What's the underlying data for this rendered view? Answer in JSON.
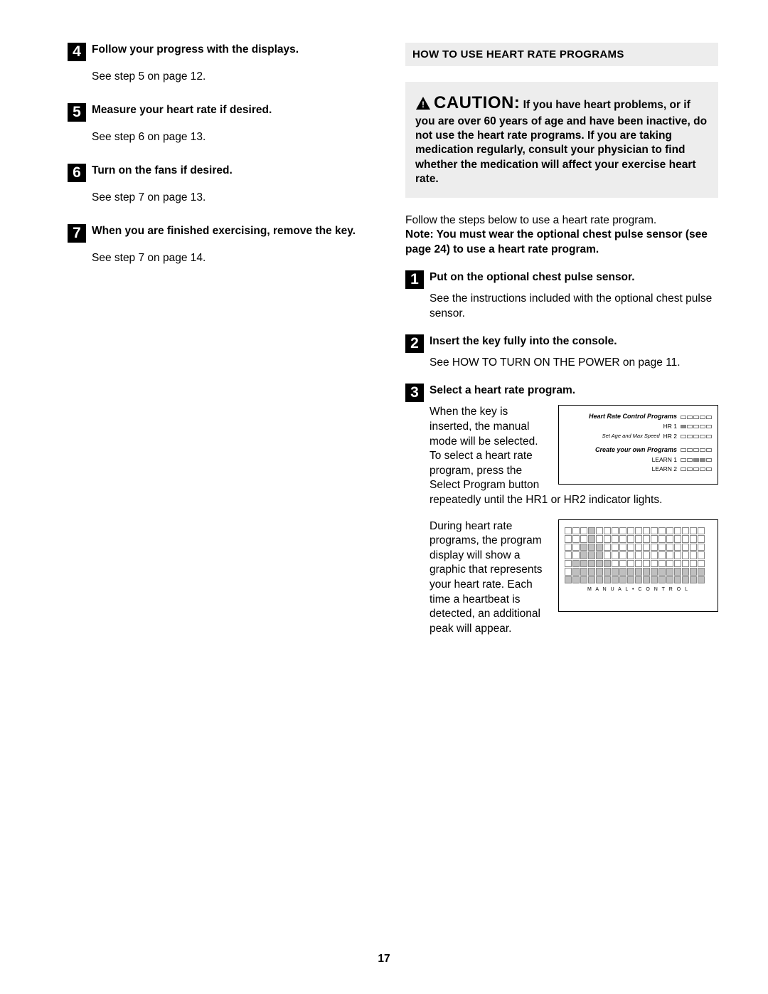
{
  "left": {
    "steps": [
      {
        "num": "4",
        "title": "Follow your progress with the displays.",
        "text": "See step 5 on page 12."
      },
      {
        "num": "5",
        "title": "Measure your heart rate if desired.",
        "text": "See step 6 on page 13."
      },
      {
        "num": "6",
        "title": "Turn on the fans if desired.",
        "text": "See step 7 on page 13."
      },
      {
        "num": "7",
        "title": "When you are finished exercising, remove the key.",
        "text": "See step 7 on page 14."
      }
    ]
  },
  "right": {
    "header": "HOW TO USE HEART RATE PROGRAMS",
    "caution": {
      "label": "CAUTION:",
      "text": "If you have heart problems, or if you are over 60 years of age and have been inactive, do not use the heart rate programs. If you are taking medication regularly, consult your physician to find whether the medication will affect your exercise heart rate."
    },
    "intro_plain": "Follow the steps below to use a heart rate program.",
    "intro_bold": "Note: You must wear the optional chest pulse sensor (see page 24) to use a heart rate program.",
    "steps": [
      {
        "num": "1",
        "title": "Put on the optional chest pulse sensor.",
        "text": "See the instructions included with the optional chest pulse sensor."
      },
      {
        "num": "2",
        "title": "Insert the key fully into the console.",
        "text": "See HOW TO TURN ON THE POWER on page 11."
      },
      {
        "num": "3",
        "title": "Select a heart rate program.",
        "para1": "When the key is inserted, the manual mode will be selected. To select a heart rate program, press the Select Program button repeatedly until the HR1 or HR2 indicator lights.",
        "para2": "During heart rate programs, the program display will show a graphic that represents your heart rate. Each time a heartbeat is detected, an additional peak will appear."
      }
    ],
    "panel1": {
      "title": "Heart Rate Control Programs",
      "sub": "Set Age and Max Speed",
      "hr1": "HR 1",
      "hr2": "HR 2",
      "create": "Create your own Programs",
      "learn1": "LEARN 1",
      "learn2": "LEARN 2"
    },
    "panel2": {
      "label": "M A N U A L • C O N T R O L",
      "cols": 18,
      "pattern": [
        [
          0,
          0,
          0,
          1,
          0,
          0,
          0,
          0,
          0,
          0,
          0,
          0,
          0,
          0,
          0,
          0,
          0,
          0
        ],
        [
          0,
          0,
          0,
          1,
          0,
          0,
          0,
          0,
          0,
          0,
          0,
          0,
          0,
          0,
          0,
          0,
          0,
          0
        ],
        [
          0,
          0,
          1,
          1,
          1,
          0,
          0,
          0,
          0,
          0,
          0,
          0,
          0,
          0,
          0,
          0,
          0,
          0
        ],
        [
          0,
          0,
          1,
          1,
          1,
          0,
          0,
          0,
          0,
          0,
          0,
          0,
          0,
          0,
          0,
          0,
          0,
          0
        ],
        [
          0,
          1,
          1,
          1,
          1,
          1,
          0,
          0,
          0,
          0,
          0,
          0,
          0,
          0,
          0,
          0,
          0,
          0
        ],
        [
          0,
          1,
          1,
          1,
          1,
          1,
          1,
          1,
          1,
          1,
          1,
          1,
          1,
          1,
          1,
          1,
          1,
          1
        ],
        [
          1,
          1,
          1,
          1,
          1,
          1,
          1,
          1,
          1,
          1,
          1,
          1,
          1,
          1,
          1,
          1,
          1,
          1
        ]
      ]
    }
  },
  "page_number": "17"
}
